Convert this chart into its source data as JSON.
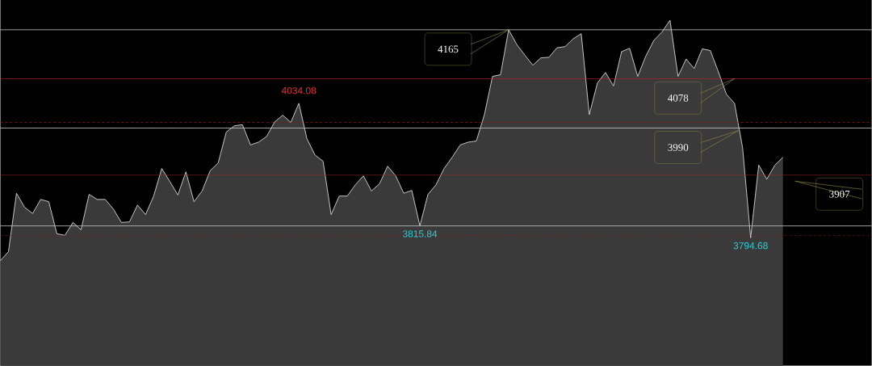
{
  "chart_data": {
    "type": "area",
    "categories": [
      null,
      null,
      null,
      null,
      null,
      null,
      null,
      null,
      null,
      null,
      null,
      null,
      null,
      null,
      null,
      null,
      null,
      null,
      null,
      null,
      null,
      null,
      null,
      null,
      null,
      null,
      null,
      null,
      null,
      null,
      null,
      null,
      null,
      null,
      null,
      null,
      null,
      null,
      null,
      null,
      null,
      null,
      null,
      null,
      null,
      null,
      null,
      null,
      null,
      null,
      null,
      null,
      null,
      null,
      null,
      null,
      null,
      null,
      null,
      null,
      null,
      null,
      null,
      null,
      null,
      null,
      null,
      null,
      null,
      null,
      null,
      null,
      null,
      null,
      null,
      null,
      null,
      null,
      null,
      null,
      null,
      null,
      null,
      null,
      null,
      null,
      null,
      null,
      null,
      null,
      null,
      null,
      null,
      null,
      null,
      null,
      null,
      null,
      null,
      null,
      null,
      null,
      null,
      null,
      null,
      null,
      null,
      null,
      null
    ],
    "values": [
      3754,
      3770,
      3874,
      3849,
      3838,
      3863,
      3859,
      3802,
      3799,
      3822,
      3809,
      3872,
      3863,
      3863,
      3846,
      3822,
      3823,
      3853,
      3836,
      3869,
      3918,
      3895,
      3871,
      3912,
      3859,
      3878,
      3914,
      3928,
      3983,
      3994,
      3996,
      3960,
      3965,
      3975,
      4001,
      4013,
      4000,
      4034.08,
      3971,
      3942,
      3931,
      3836,
      3869,
      3869,
      3889,
      3905,
      3878,
      3891,
      3922,
      3905,
      3874,
      3879,
      3815.84,
      3872,
      3889,
      3918,
      3938,
      3960,
      3965,
      3967,
      4014,
      4082,
      4085,
      4165,
      4139,
      4120,
      4102,
      4115,
      4116,
      4133,
      4135,
      4149,
      4158,
      4014,
      4070,
      4089,
      4065,
      4126,
      4132,
      4082,
      4118,
      4146,
      4161,
      4182,
      4082,
      4113,
      4096,
      4131,
      4128,
      4090,
      4050,
      4034,
      3955,
      3794.68,
      3924,
      3899,
      3924,
      3938,
      null,
      null,
      null,
      null,
      null,
      null,
      null,
      null,
      null,
      null,
      null
    ],
    "color": "#3a3a3a",
    "ylim": [
      3567,
      4218
    ],
    "ref_lines": [
      {
        "axis": "y",
        "value": 4165,
        "label": "4165",
        "color": "#c8c8c8"
      },
      {
        "axis": "y",
        "value": 4078,
        "label": "4078",
        "color": "#b22222"
      },
      {
        "axis": "y",
        "value": 3990,
        "label": "3990",
        "color": "#c8c8c8"
      },
      {
        "axis": "y",
        "value": 3907,
        "label": "3907",
        "color": "#b22222"
      },
      {
        "axis": "y",
        "value": 3815.84,
        "color": "#c8c8c8"
      },
      {
        "axis": "y",
        "value": 4000,
        "color": "#8b1a1a",
        "line_style": "dashed"
      },
      {
        "axis": "y",
        "value": 3799,
        "color": "#8b1a1a",
        "line_style": "dashed"
      }
    ],
    "annotations": [
      {
        "text": "4034.08",
        "y": 4034.08
      },
      {
        "text": "3815.84",
        "y": 3815.84
      },
      {
        "text": "3794.68",
        "y": 3794.68
      }
    ]
  }
}
